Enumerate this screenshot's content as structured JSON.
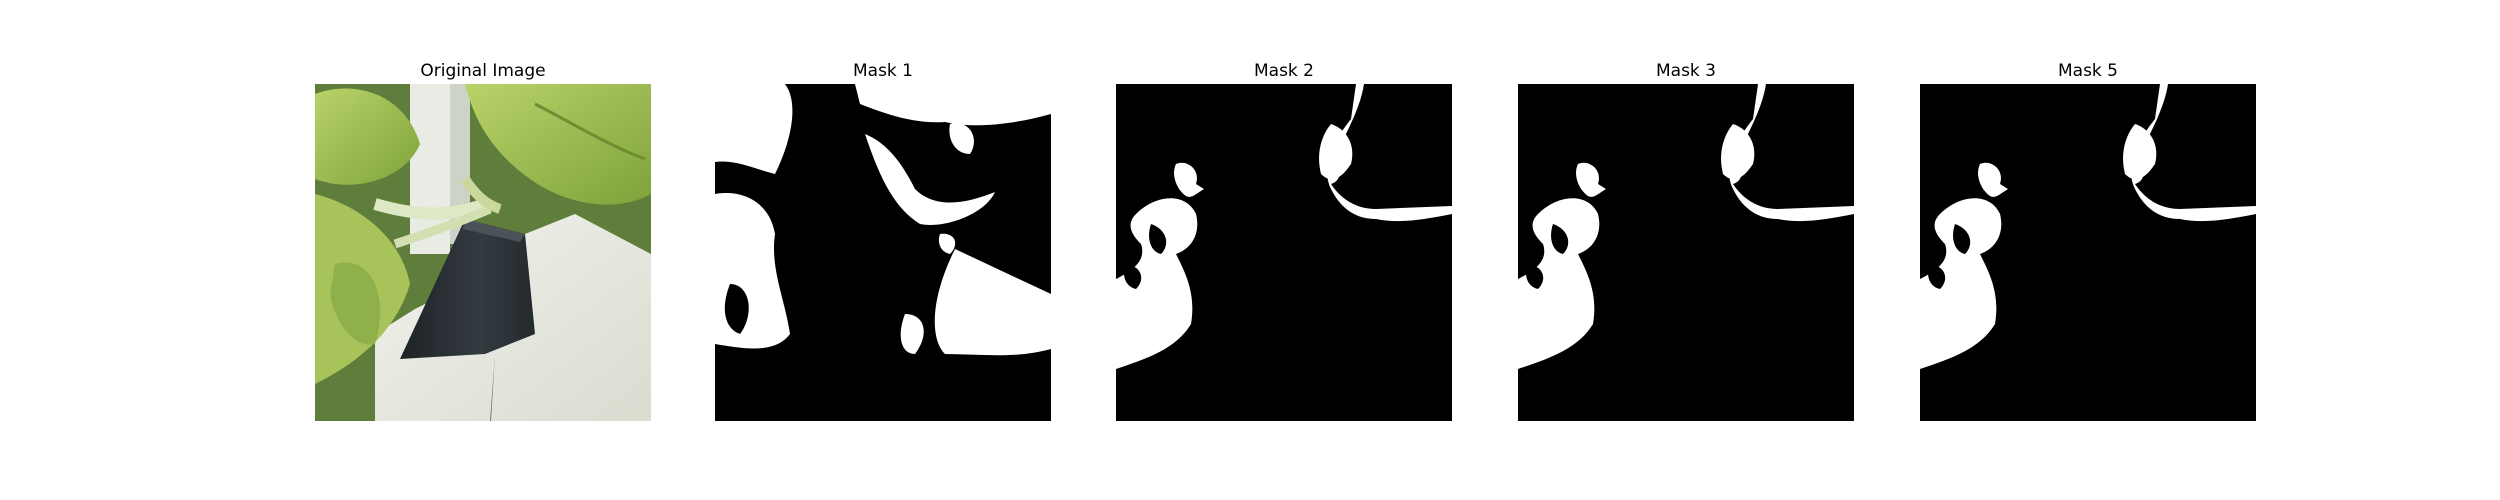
{
  "panels": [
    {
      "title": "Original Image"
    },
    {
      "title": "Mask 1"
    },
    {
      "title": "Mask 2"
    },
    {
      "title": "Mask 3"
    },
    {
      "title": "Mask 5"
    }
  ],
  "colors": {
    "mask_background": "#000000",
    "mask_foreground": "#ffffff",
    "leaf": "#9bbd44",
    "pot": "#2b3034",
    "wall": "#e6e8e0"
  }
}
